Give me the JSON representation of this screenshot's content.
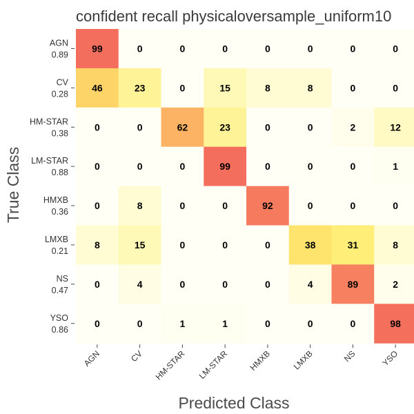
{
  "chart_data": {
    "type": "heatmap",
    "title": "confident recall physicaloversample_uniform10",
    "xlabel": "Predicted Class",
    "ylabel": "True Class",
    "x_categories": [
      "AGN",
      "CV",
      "HM-STAR",
      "LM-STAR",
      "HMXB",
      "LMXB",
      "NS",
      "YSO"
    ],
    "y_categories": [
      {
        "name": "AGN",
        "sub": "0.89"
      },
      {
        "name": "CV",
        "sub": "0.28"
      },
      {
        "name": "HM-STAR",
        "sub": "0.38"
      },
      {
        "name": "LM-STAR",
        "sub": "0.88"
      },
      {
        "name": "HMXB",
        "sub": "0.36"
      },
      {
        "name": "LMXB",
        "sub": "0.21"
      },
      {
        "name": "NS",
        "sub": "0.47"
      },
      {
        "name": "YSO",
        "sub": "0.86"
      }
    ],
    "values": [
      [
        99,
        0,
        0,
        0,
        0,
        0,
        0,
        0
      ],
      [
        46,
        23,
        0,
        15,
        8,
        8,
        0,
        0
      ],
      [
        0,
        0,
        62,
        23,
        0,
        0,
        2,
        12
      ],
      [
        0,
        0,
        0,
        99,
        0,
        0,
        0,
        1
      ],
      [
        0,
        8,
        0,
        0,
        92,
        0,
        0,
        0
      ],
      [
        8,
        15,
        0,
        0,
        0,
        38,
        31,
        8
      ],
      [
        0,
        4,
        0,
        0,
        0,
        4,
        89,
        2
      ],
      [
        0,
        0,
        1,
        1,
        0,
        0,
        0,
        98
      ]
    ],
    "value_range": [
      0,
      100
    ],
    "colorscale": [
      "#fffff5",
      "#fff8b0",
      "#ffec6e",
      "#fdcc66",
      "#fbaa63",
      "#f88a60",
      "#f36c5d"
    ],
    "grid": false
  }
}
